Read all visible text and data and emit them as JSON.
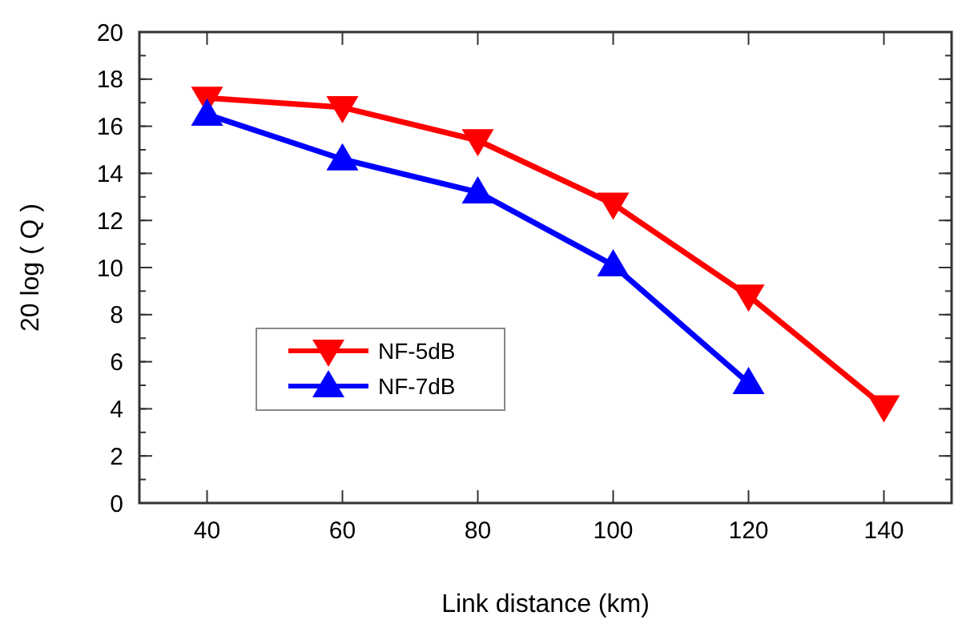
{
  "chart_data": {
    "type": "line",
    "xlabel": "Link distance (km)",
    "ylabel": "20 log ( Q )",
    "x": [
      40,
      60,
      80,
      100,
      120,
      140
    ],
    "series": [
      {
        "name": "NF-5dB",
        "color": "#ff0000",
        "marker": "triangle-down",
        "values": [
          17.2,
          16.8,
          15.4,
          12.7,
          8.8,
          4.1
        ]
      },
      {
        "name": "NF-7dB",
        "color": "#0000ff",
        "marker": "triangle",
        "values": [
          16.5,
          14.6,
          13.2,
          10.1,
          5.1,
          null
        ]
      }
    ],
    "xlim": [
      30,
      150
    ],
    "xticks": [
      40,
      60,
      80,
      100,
      120,
      140
    ],
    "ylim": [
      0,
      20
    ],
    "yticks": [
      0,
      2,
      4,
      6,
      8,
      10,
      12,
      14,
      16,
      18,
      20
    ],
    "grid": false,
    "legend": "bottom left",
    "line_style": "solid"
  }
}
